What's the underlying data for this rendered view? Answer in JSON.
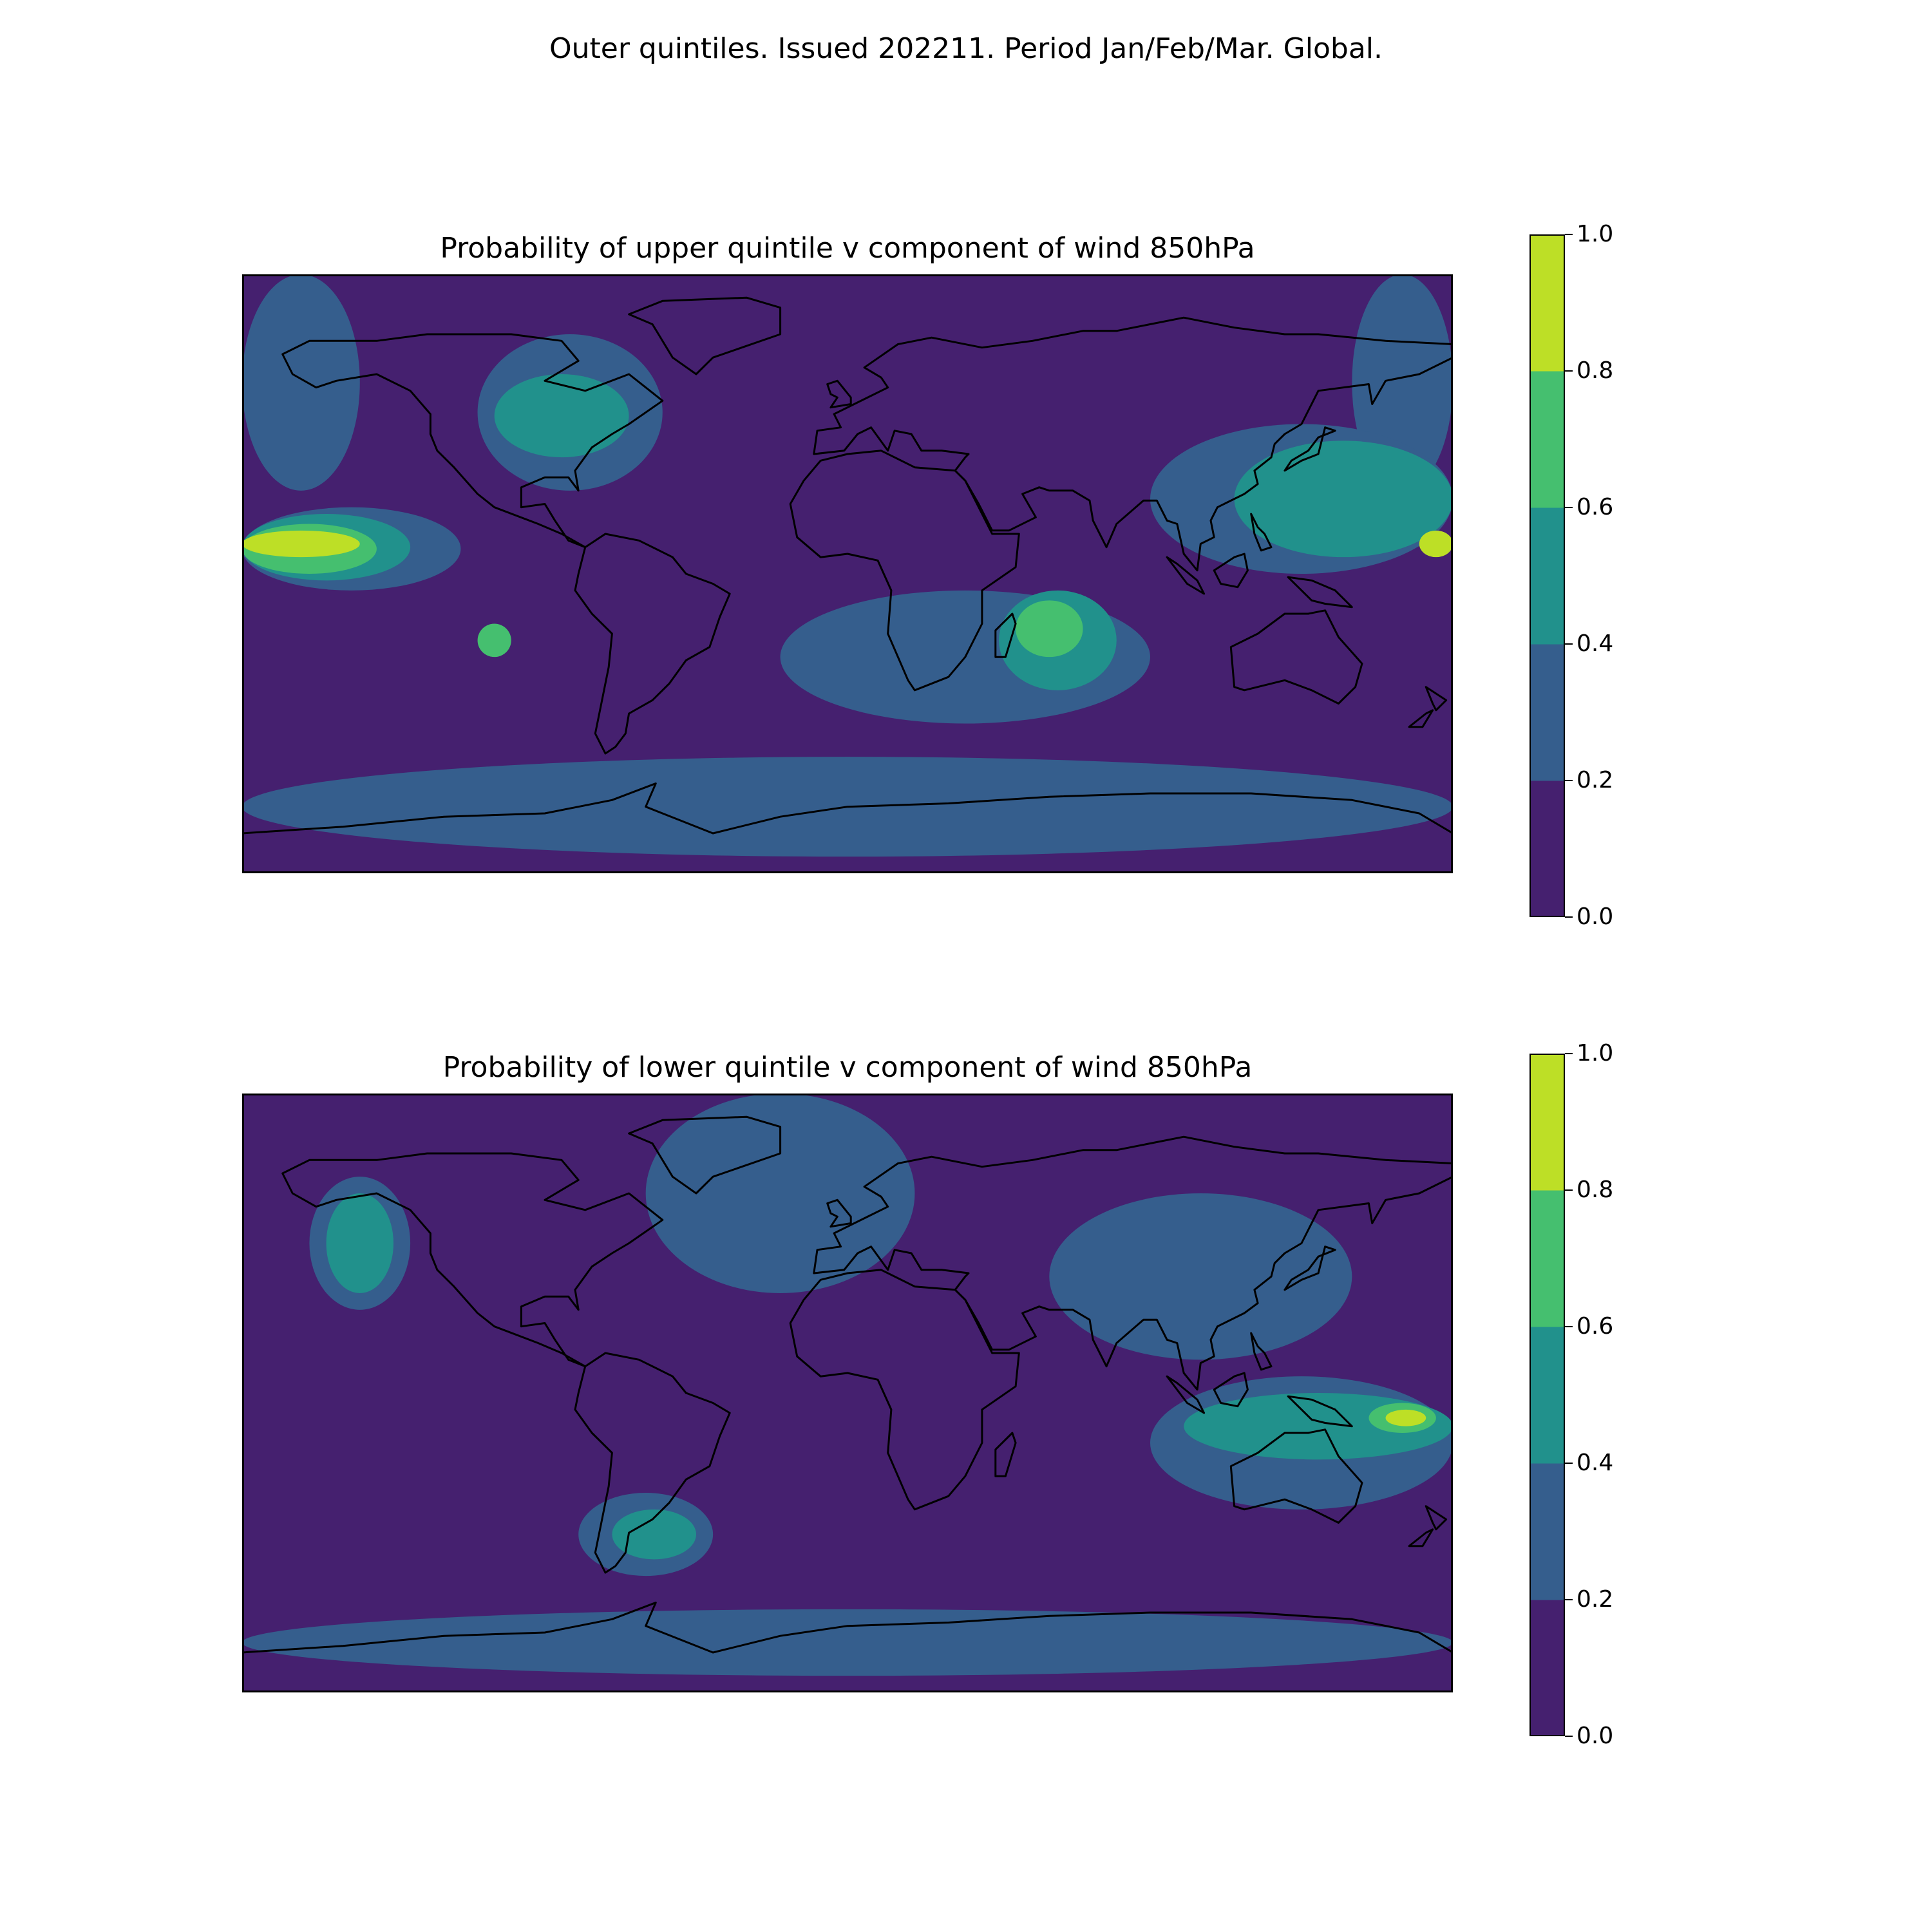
{
  "figure": {
    "suptitle": "Outer quintiles. Issued 202211. Period Jan/Feb/Mar. Global."
  },
  "colormap": {
    "name": "viridis",
    "levels": [
      0.0,
      0.2,
      0.4,
      0.6,
      0.8,
      1.0
    ],
    "colors": [
      "#45206f",
      "#355e8d",
      "#21918c",
      "#45bf6f",
      "#bddf26"
    ],
    "coastline_color": "#000000"
  },
  "panels": [
    {
      "title": "Probability of upper quintile v component of wind 850hPa",
      "background_level": 0,
      "colorbar_ticks": [
        "0.0",
        "0.2",
        "0.4",
        "0.6",
        "0.8",
        "1.0"
      ],
      "regions": [
        {
          "level": 1,
          "lon_min": 150,
          "lon_max": 180,
          "lat_min": 25,
          "lat_max": 90
        },
        {
          "level": 1,
          "lon_min": -180,
          "lon_max": -145,
          "lat_min": 25,
          "lat_max": 90
        },
        {
          "level": 1,
          "lon_min": -110,
          "lon_max": -55,
          "lat_min": 25,
          "lat_max": 72
        },
        {
          "level": 1,
          "lon_min": -180,
          "lon_max": -115,
          "lat_min": -5,
          "lat_max": 20
        },
        {
          "level": 1,
          "lon_min": -20,
          "lon_max": 90,
          "lat_min": -45,
          "lat_max": -5
        },
        {
          "level": 1,
          "lon_min": 90,
          "lon_max": 180,
          "lat_min": 0,
          "lat_max": 45
        },
        {
          "level": 1,
          "lon_min": -180,
          "lon_max": 180,
          "lat_min": -85,
          "lat_max": -55
        },
        {
          "level": 2,
          "lon_min": -105,
          "lon_max": -65,
          "lat_min": 35,
          "lat_max": 60
        },
        {
          "level": 2,
          "lon_min": -180,
          "lon_max": -130,
          "lat_min": -2,
          "lat_max": 18
        },
        {
          "level": 2,
          "lon_min": 45,
          "lon_max": 80,
          "lat_min": -35,
          "lat_max": -5
        },
        {
          "level": 2,
          "lon_min": 115,
          "lon_max": 180,
          "lat_min": 5,
          "lat_max": 40
        },
        {
          "level": 3,
          "lon_min": -180,
          "lon_max": -140,
          "lat_min": 0,
          "lat_max": 15
        },
        {
          "level": 3,
          "lon_min": 50,
          "lon_max": 70,
          "lat_min": -25,
          "lat_max": -8
        },
        {
          "level": 3,
          "lon_min": -110,
          "lon_max": -100,
          "lat_min": -25,
          "lat_max": -15
        },
        {
          "level": 4,
          "lon_min": -180,
          "lon_max": -145,
          "lat_min": 5,
          "lat_max": 13
        },
        {
          "level": 4,
          "lon_min": 170,
          "lon_max": 180,
          "lat_min": 5,
          "lat_max": 13
        }
      ]
    },
    {
      "title": "Probability of lower quintile v component of wind 850hPa",
      "background_level": 0,
      "colorbar_ticks": [
        "0.0",
        "0.2",
        "0.4",
        "0.6",
        "0.8",
        "1.0"
      ],
      "regions": [
        {
          "level": 1,
          "lon_min": -60,
          "lon_max": 20,
          "lat_min": 30,
          "lat_max": 90
        },
        {
          "level": 1,
          "lon_min": 60,
          "lon_max": 150,
          "lat_min": 10,
          "lat_max": 60
        },
        {
          "level": 1,
          "lon_min": -160,
          "lon_max": -130,
          "lat_min": 25,
          "lat_max": 65
        },
        {
          "level": 1,
          "lon_min": -80,
          "lon_max": -40,
          "lat_min": -55,
          "lat_max": -30
        },
        {
          "level": 1,
          "lon_min": 90,
          "lon_max": 180,
          "lat_min": -35,
          "lat_max": 5
        },
        {
          "level": 1,
          "lon_min": -180,
          "lon_max": 180,
          "lat_min": -85,
          "lat_max": -65
        },
        {
          "level": 2,
          "lon_min": -155,
          "lon_max": -135,
          "lat_min": 30,
          "lat_max": 60
        },
        {
          "level": 2,
          "lon_min": 100,
          "lon_max": 180,
          "lat_min": -20,
          "lat_max": 0
        },
        {
          "level": 2,
          "lon_min": -70,
          "lon_max": -45,
          "lat_min": -50,
          "lat_max": -35
        },
        {
          "level": 3,
          "lon_min": 155,
          "lon_max": 175,
          "lat_min": -12,
          "lat_max": -3
        },
        {
          "level": 4,
          "lon_min": 160,
          "lon_max": 172,
          "lat_min": -10,
          "lat_max": -5
        }
      ]
    }
  ]
}
